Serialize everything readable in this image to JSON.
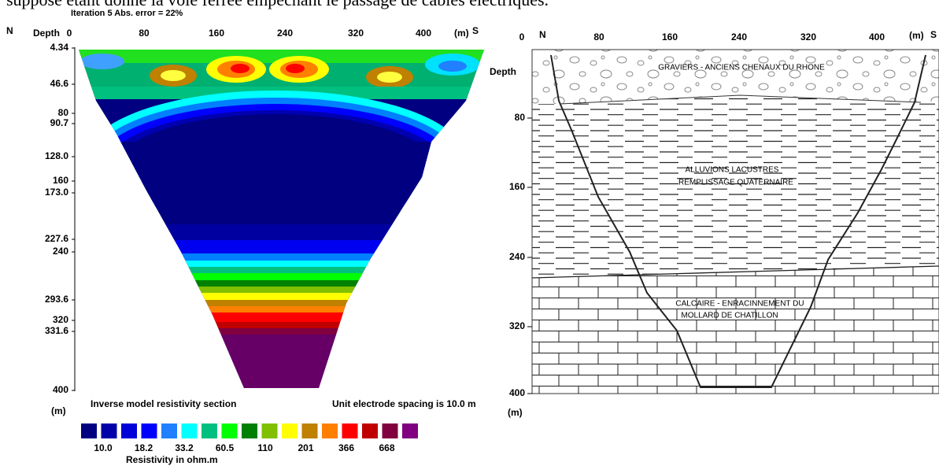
{
  "header": {
    "caption_fragment": "supposé étant donné la voie ferrée empêchant le passage de câbles électriques."
  },
  "left_panel": {
    "iteration_label": "Iteration 5 Abs. error = 22%",
    "north": "N",
    "south": "S",
    "depth_label": "Depth",
    "distance_ticks": [
      "0",
      "80",
      "160",
      "240",
      "320",
      "400"
    ],
    "distance_unit": "(m)",
    "depth_ticks": [
      "4.34",
      "46.6",
      "80",
      "90.7",
      "128.0",
      "160",
      "173.0",
      "227.6",
      "240",
      "293.6",
      "320",
      "331.6",
      "400"
    ],
    "depth_unit": "(m)",
    "section_title": "Inverse model resistivity section",
    "spacing_note": "Unit electrode spacing is 10.0 m",
    "color_scale_labels": [
      "10.0",
      "18.2",
      "33.2",
      "60.5",
      "110",
      "201",
      "366",
      "668"
    ],
    "color_scale_title": "Resistivity in ohm.m"
  },
  "right_panel": {
    "north": "N",
    "south": "S",
    "depth_label": "Depth",
    "distance_ticks": [
      "0",
      "80",
      "160",
      "240",
      "320",
      "400"
    ],
    "distance_unit": "(m)",
    "depth_ticks": [
      "80",
      "160",
      "240",
      "320",
      "400"
    ],
    "depth_unit": "(m)",
    "layers": [
      {
        "lines": [
          "GRAVIERS - ANCIENS CHENAUX DU RHONE"
        ]
      },
      {
        "lines": [
          "ALLUVIONS LACUSTRES",
          "REMPLISSAGE QUATERNAIRE"
        ]
      },
      {
        "lines": [
          "CALCAIRE - ENRACINNEMENT DU",
          "MOLLARD DE CHATILLON"
        ]
      }
    ]
  }
}
